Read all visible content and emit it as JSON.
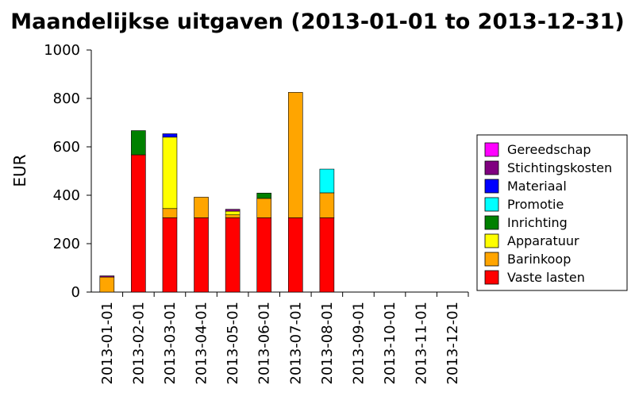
{
  "chart_data": {
    "type": "bar",
    "stacked": true,
    "title": "Maandelijkse uitgaven (2013-01-01 to 2013-12-31)",
    "xlabel": "",
    "ylabel": "EUR",
    "ylim": [
      0,
      1000
    ],
    "yticks": [
      0,
      200,
      400,
      600,
      800,
      1000
    ],
    "grid": false,
    "legend_position": "right",
    "categories": [
      "2013-01-01",
      "2013-02-01",
      "2013-03-01",
      "2013-04-01",
      "2013-05-01",
      "2013-06-01",
      "2013-07-01",
      "2013-08-01",
      "2013-09-01",
      "2013-10-01",
      "2013-11-01",
      "2013-12-01"
    ],
    "series": [
      {
        "name": "Vaste lasten",
        "color": "#ff0000",
        "values": [
          0,
          567,
          307,
          307,
          307,
          307,
          307,
          307,
          0,
          0,
          0,
          0
        ]
      },
      {
        "name": "Barinkoop",
        "color": "#ffa500",
        "values": [
          62,
          0,
          38,
          85,
          12,
          80,
          518,
          103,
          0,
          0,
          0,
          0
        ]
      },
      {
        "name": "Apparatuur",
        "color": "#ffff00",
        "values": [
          0,
          0,
          295,
          0,
          15,
          0,
          0,
          0,
          0,
          0,
          0,
          0
        ]
      },
      {
        "name": "Inrichting",
        "color": "#008000",
        "values": [
          0,
          100,
          0,
          0,
          0,
          22,
          0,
          0,
          0,
          0,
          0,
          0
        ]
      },
      {
        "name": "Promotie",
        "color": "#00ffff",
        "values": [
          0,
          0,
          0,
          0,
          0,
          0,
          0,
          98,
          0,
          0,
          0,
          0
        ]
      },
      {
        "name": "Materiaal",
        "color": "#0000ff",
        "values": [
          0,
          0,
          14,
          0,
          0,
          0,
          0,
          0,
          0,
          0,
          0,
          0
        ]
      },
      {
        "name": "Stichtingskosten",
        "color": "#800080",
        "values": [
          5,
          0,
          0,
          0,
          8,
          0,
          0,
          0,
          0,
          0,
          0,
          0
        ]
      },
      {
        "name": "Gereedschap",
        "color": "#ff00ff",
        "values": [
          0,
          0,
          0,
          0,
          0,
          0,
          0,
          0,
          0,
          0,
          0,
          0
        ]
      }
    ]
  }
}
